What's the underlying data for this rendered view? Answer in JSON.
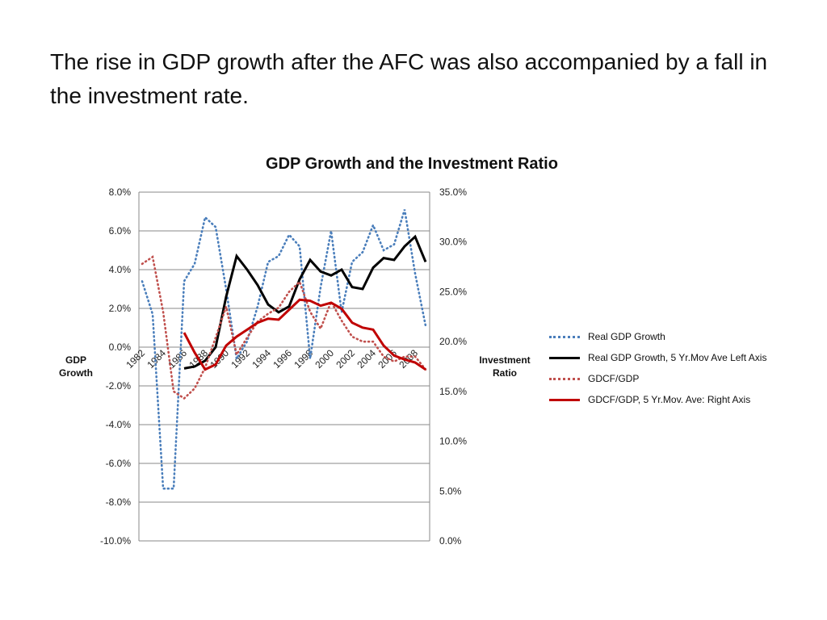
{
  "slide": {
    "title": "The rise in GDP growth after the AFC was also accompanied by a fall in the investment rate."
  },
  "chart_data": {
    "type": "line",
    "title": "GDP Growth and the Investment Ratio",
    "y_left": {
      "label_line1": "GDP",
      "label_line2": "Growth",
      "range": [
        -10,
        8
      ],
      "ticks": [
        8,
        6,
        4,
        2,
        0,
        -2,
        -4,
        -6,
        -8,
        -10
      ],
      "tick_labels": [
        "8.0%",
        "6.0%",
        "4.0%",
        "2.0%",
        "0.0%",
        "-2.0%",
        "-4.0%",
        "-6.0%",
        "-8.0%",
        "-10.0%"
      ]
    },
    "y_right": {
      "label_line1": "Investment",
      "label_line2": "Ratio",
      "range": [
        0,
        35
      ],
      "ticks": [
        35,
        30,
        25,
        20,
        15,
        10,
        5,
        0
      ],
      "tick_labels": [
        "35.0%",
        "30.0%",
        "25.0%",
        "20.0%",
        "15.0%",
        "10.0%",
        "5.0%",
        "0.0%"
      ]
    },
    "x_range": [
      1982,
      2009
    ],
    "x_tick_labels": [
      "1982",
      "1984",
      "1986",
      "1988",
      "1990",
      "1992",
      "1994",
      "1996",
      "1998",
      "2000",
      "2002",
      "2004",
      "2006",
      "2008"
    ],
    "grid": true,
    "legend_position": "right",
    "series": [
      {
        "name": "Real GDP Growth",
        "axis": "left",
        "color": "#4a7ebb",
        "dash": "dotted",
        "years": [
          1982,
          1983,
          1984,
          1985,
          1986,
          1987,
          1988,
          1989,
          1990,
          1991,
          1992,
          1993,
          1994,
          1995,
          1996,
          1997,
          1998,
          1999,
          2000,
          2001,
          2002,
          2003,
          2004,
          2005,
          2006,
          2007,
          2008,
          2009
        ],
        "values": [
          3.4,
          1.7,
          -7.3,
          -7.3,
          3.4,
          4.3,
          6.7,
          6.2,
          3.0,
          -0.6,
          0.3,
          2.1,
          4.4,
          4.7,
          5.8,
          5.2,
          -0.6,
          3.1,
          6.0,
          1.8,
          4.4,
          4.9,
          6.3,
          5.0,
          5.3,
          7.1,
          3.8,
          1.1
        ]
      },
      {
        "name": "Real GDP Growth, 5 Yr.Mov Ave Left Axis",
        "axis": "left",
        "color": "#000000",
        "dash": "solid",
        "years": [
          1986,
          1987,
          1988,
          1989,
          1990,
          1991,
          1992,
          1993,
          1994,
          1995,
          1996,
          1997,
          1998,
          1999,
          2000,
          2001,
          2002,
          2003,
          2004,
          2005,
          2006,
          2007,
          2008,
          2009
        ],
        "values": [
          -1.1,
          -1.0,
          -0.7,
          0.0,
          2.6,
          4.7,
          4.0,
          3.2,
          2.2,
          1.8,
          2.1,
          3.5,
          4.5,
          3.9,
          3.7,
          4.0,
          3.1,
          3.0,
          4.1,
          4.6,
          4.5,
          5.2,
          5.7,
          4.4
        ]
      },
      {
        "name": "GDCF/GDP",
        "axis": "right",
        "color": "#c0504d",
        "dash": "dotted",
        "years": [
          1982,
          1983,
          1984,
          1985,
          1986,
          1987,
          1988,
          1989,
          1990,
          1991,
          1992,
          1993,
          1994,
          1995,
          1996,
          1997,
          1998,
          1999,
          2000,
          2001,
          2002,
          2003,
          2004,
          2005,
          2006,
          2007,
          2008,
          2009
        ],
        "values": [
          27.8,
          28.5,
          23.0,
          15.0,
          14.3,
          15.3,
          17.4,
          20.4,
          23.5,
          18.7,
          20.4,
          22.0,
          22.8,
          23.4,
          25.0,
          26.0,
          23.0,
          21.3,
          24.0,
          22.1,
          20.5,
          20.0,
          20.0,
          18.5,
          18.0,
          18.5,
          18.5,
          17.2
        ]
      },
      {
        "name": "GDCF/GDP,  5 Yr.Mov. Ave: Right Axis",
        "axis": "right",
        "color": "#c00000",
        "dash": "solid",
        "years": [
          1986,
          1987,
          1988,
          1989,
          1990,
          1991,
          1992,
          1993,
          1994,
          1995,
          1996,
          1997,
          1998,
          1999,
          2000,
          2001,
          2002,
          2003,
          2004,
          2005,
          2006,
          2007,
          2008,
          2009
        ],
        "values": [
          20.9,
          18.9,
          17.2,
          17.7,
          19.6,
          20.5,
          21.2,
          21.9,
          22.3,
          22.2,
          23.2,
          24.2,
          24.1,
          23.6,
          23.9,
          23.3,
          21.9,
          21.4,
          21.2,
          19.6,
          18.6,
          18.2,
          17.9,
          17.2
        ]
      }
    ]
  }
}
